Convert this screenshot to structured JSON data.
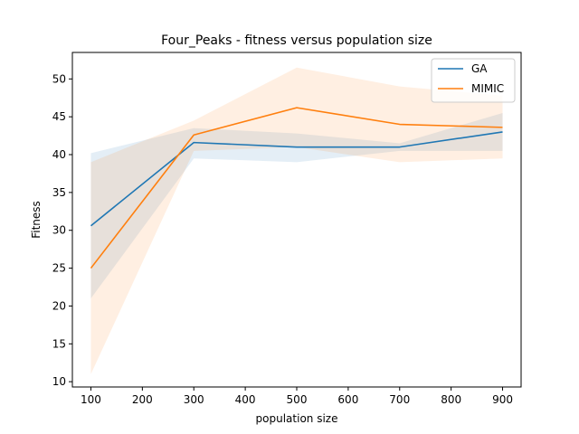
{
  "chart_data": {
    "type": "line",
    "title": "Four_Peaks - fitness versus population size",
    "xlabel": "population size",
    "ylabel": "Fitness",
    "x": [
      100,
      300,
      500,
      700,
      900
    ],
    "xlim": [
      64,
      936
    ],
    "ylim": [
      9.3,
      53.5
    ],
    "xticks": [
      100,
      200,
      300,
      400,
      500,
      600,
      700,
      800,
      900
    ],
    "yticks": [
      10,
      15,
      20,
      25,
      30,
      35,
      40,
      45,
      50
    ],
    "grid": false,
    "legend_position": "top-right",
    "series": [
      {
        "name": "GA",
        "color": "#1f77b4",
        "values": [
          30.6,
          41.6,
          41.0,
          41.0,
          43.0
        ],
        "band_upper": [
          40.2,
          43.5,
          42.8,
          41.5,
          45.5
        ],
        "band_lower": [
          21.0,
          39.5,
          39.0,
          40.5,
          40.5
        ]
      },
      {
        "name": "MIMIC",
        "color": "#ff7f0e",
        "values": [
          25.0,
          42.6,
          46.2,
          44.0,
          43.6
        ],
        "band_upper": [
          39.0,
          44.5,
          51.5,
          49.0,
          47.8
        ],
        "band_lower": [
          11.0,
          40.5,
          41.0,
          39.0,
          39.5
        ]
      }
    ]
  }
}
